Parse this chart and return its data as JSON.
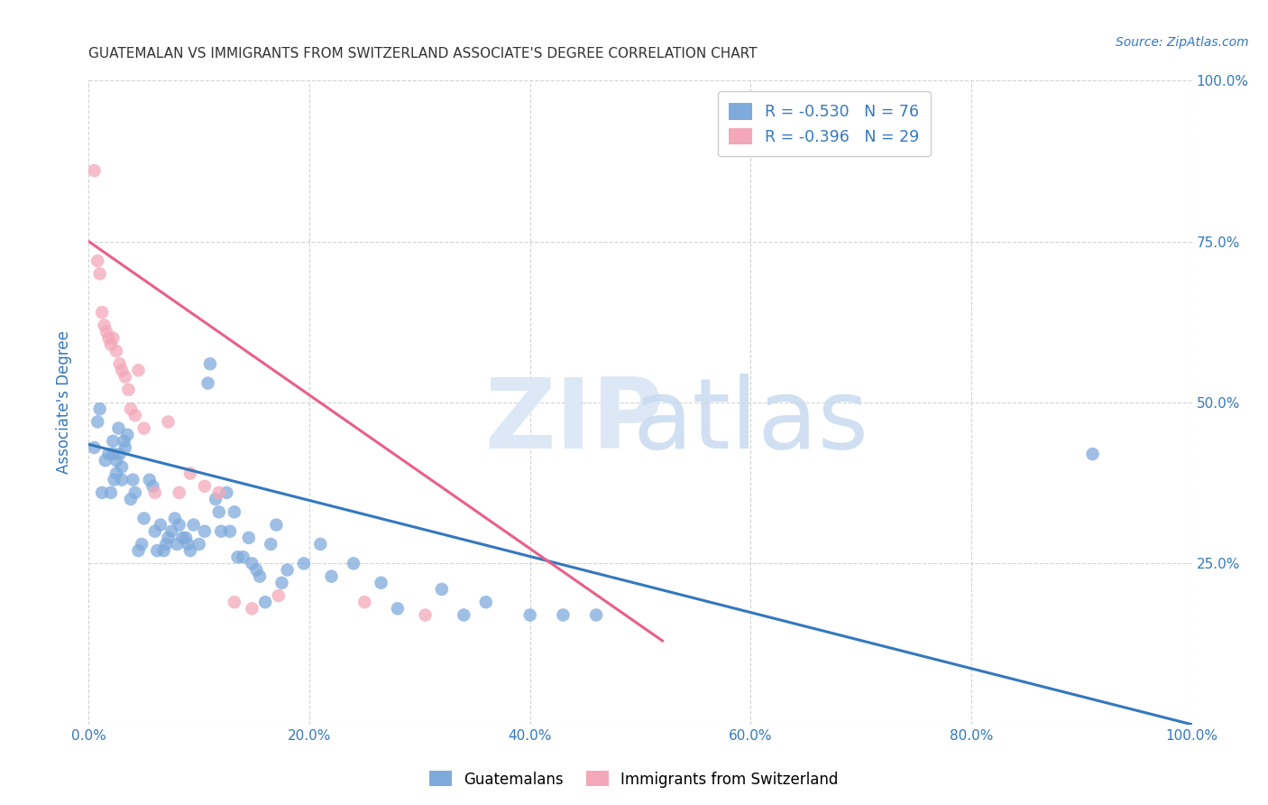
{
  "title": "GUATEMALAN VS IMMIGRANTS FROM SWITZERLAND ASSOCIATE'S DEGREE CORRELATION CHART",
  "source": "Source: ZipAtlas.com",
  "ylabel": "Associate's Degree",
  "xlabel": "",
  "xlim": [
    0.0,
    1.0
  ],
  "ylim": [
    0.0,
    1.0
  ],
  "xticks": [
    0.0,
    0.2,
    0.4,
    0.6,
    0.8,
    1.0
  ],
  "yticks": [
    0.0,
    0.25,
    0.5,
    0.75,
    1.0
  ],
  "xtick_labels": [
    "0.0%",
    "20.0%",
    "40.0%",
    "60.0%",
    "80.0%",
    "100.0%"
  ],
  "ytick_labels_left": [
    "",
    "",
    "",
    "",
    ""
  ],
  "ytick_labels_right": [
    "",
    "25.0%",
    "50.0%",
    "75.0%",
    "100.0%"
  ],
  "blue_R": "-0.530",
  "blue_N": "76",
  "pink_R": "-0.396",
  "pink_N": "29",
  "blue_color": "#7faadc",
  "pink_color": "#f4a7b9",
  "blue_line_color": "#3478bd",
  "pink_line_color": "#e8608a",
  "axis_label_color": "#3478bd",
  "title_color": "#333333",
  "grid_color": "#c8c8c8",
  "background_color": "#ffffff",
  "blue_scatter_x": [
    0.005,
    0.008,
    0.01,
    0.012,
    0.015,
    0.018,
    0.02,
    0.022,
    0.022,
    0.023,
    0.025,
    0.025,
    0.027,
    0.028,
    0.03,
    0.03,
    0.032,
    0.033,
    0.035,
    0.038,
    0.04,
    0.042,
    0.045,
    0.048,
    0.05,
    0.055,
    0.058,
    0.06,
    0.062,
    0.065,
    0.068,
    0.07,
    0.072,
    0.075,
    0.078,
    0.08,
    0.082,
    0.085,
    0.088,
    0.09,
    0.092,
    0.095,
    0.1,
    0.105,
    0.108,
    0.11,
    0.115,
    0.118,
    0.12,
    0.125,
    0.128,
    0.132,
    0.135,
    0.14,
    0.145,
    0.148,
    0.152,
    0.155,
    0.16,
    0.165,
    0.17,
    0.175,
    0.18,
    0.195,
    0.21,
    0.22,
    0.24,
    0.265,
    0.28,
    0.32,
    0.34,
    0.36,
    0.4,
    0.43,
    0.46,
    0.91
  ],
  "blue_scatter_y": [
    0.43,
    0.47,
    0.49,
    0.36,
    0.41,
    0.42,
    0.36,
    0.44,
    0.42,
    0.38,
    0.41,
    0.39,
    0.46,
    0.42,
    0.4,
    0.38,
    0.44,
    0.43,
    0.45,
    0.35,
    0.38,
    0.36,
    0.27,
    0.28,
    0.32,
    0.38,
    0.37,
    0.3,
    0.27,
    0.31,
    0.27,
    0.28,
    0.29,
    0.3,
    0.32,
    0.28,
    0.31,
    0.29,
    0.29,
    0.28,
    0.27,
    0.31,
    0.28,
    0.3,
    0.53,
    0.56,
    0.35,
    0.33,
    0.3,
    0.36,
    0.3,
    0.33,
    0.26,
    0.26,
    0.29,
    0.25,
    0.24,
    0.23,
    0.19,
    0.28,
    0.31,
    0.22,
    0.24,
    0.25,
    0.28,
    0.23,
    0.25,
    0.22,
    0.18,
    0.21,
    0.17,
    0.19,
    0.17,
    0.17,
    0.17,
    0.42
  ],
  "pink_scatter_x": [
    0.005,
    0.008,
    0.01,
    0.012,
    0.014,
    0.016,
    0.018,
    0.02,
    0.022,
    0.025,
    0.028,
    0.03,
    0.033,
    0.036,
    0.038,
    0.042,
    0.045,
    0.05,
    0.06,
    0.072,
    0.082,
    0.092,
    0.105,
    0.118,
    0.132,
    0.148,
    0.172,
    0.25,
    0.305
  ],
  "pink_scatter_y": [
    0.86,
    0.72,
    0.7,
    0.64,
    0.62,
    0.61,
    0.6,
    0.59,
    0.6,
    0.58,
    0.56,
    0.55,
    0.54,
    0.52,
    0.49,
    0.48,
    0.55,
    0.46,
    0.36,
    0.47,
    0.36,
    0.39,
    0.37,
    0.36,
    0.19,
    0.18,
    0.2,
    0.19,
    0.17
  ],
  "blue_trendline_x": [
    0.0,
    1.0
  ],
  "blue_trendline_y": [
    0.435,
    0.0
  ],
  "pink_trendline_x": [
    0.0,
    0.52
  ],
  "pink_trendline_y": [
    0.75,
    0.13
  ]
}
